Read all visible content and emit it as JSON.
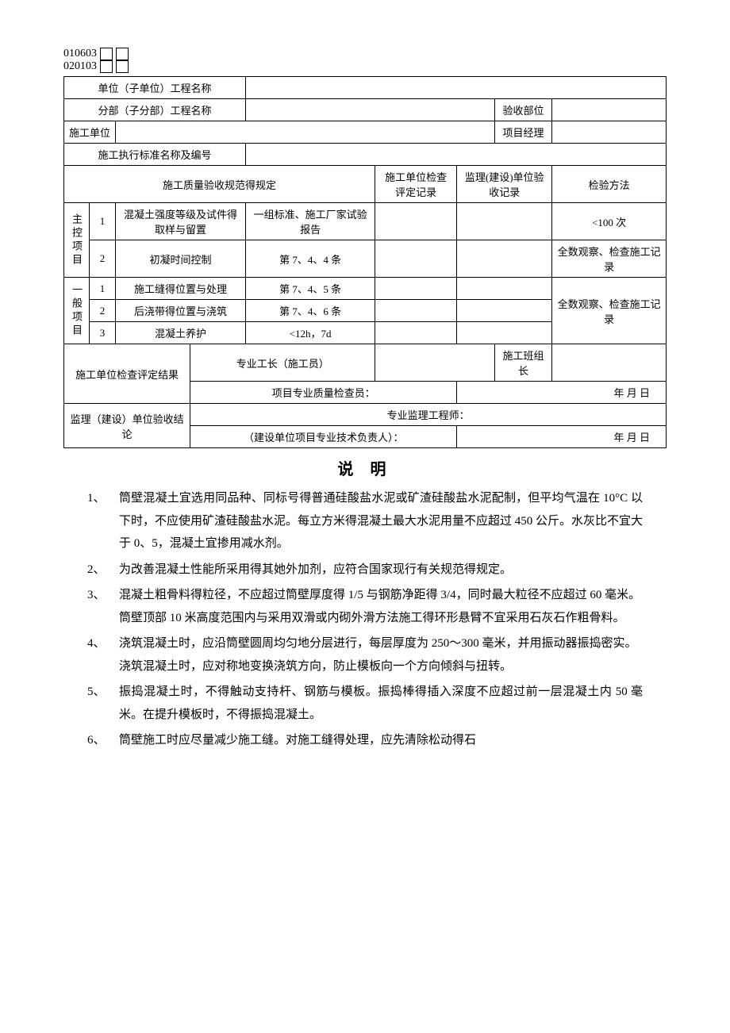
{
  "codes": [
    "010603",
    "020103"
  ],
  "header": {
    "unit_label": "单位（子单位）工程名称",
    "section_label": "分部（子分部）工程名称",
    "acceptance_part_label": "验收部位",
    "construction_unit_label": "施工单位",
    "project_manager_label": "项目经理",
    "standard_label": "施工执行标准名称及编号"
  },
  "cols": {
    "spec": "施工质量验收规范得规定",
    "check_record": "施工单位检查评定记录",
    "supervision_record": "监理(建设)单位验收记录",
    "inspection_method": "检验方法"
  },
  "sections": {
    "main_control": "主控项目",
    "general": "一般项目"
  },
  "rows": {
    "mc1": {
      "idx": "1",
      "name": "混凝土强度等级及试件得取样与留置",
      "spec": "一组标准、施工厂家试验报告",
      "method": "<100 次"
    },
    "mc2": {
      "idx": "2",
      "name": "初凝时间控制",
      "spec": "第 7、4、4 条",
      "method": "全数观察、检查施工记录"
    },
    "g1": {
      "idx": "1",
      "name": "施工缝得位置与处理",
      "spec": "第 7、4、5 条"
    },
    "g2": {
      "idx": "2",
      "name": "后浇带得位置与浇筑",
      "spec": "第 7、4、6 条"
    },
    "g3": {
      "idx": "3",
      "name": "混凝土养护",
      "spec": "<12h，7d"
    },
    "general_method": "全数观察、检查施工记录"
  },
  "footer": {
    "construction_result_label": "施工单位检查评定结果",
    "foreman_label": "专业工长（施工员）",
    "team_leader_label": "施工班组长",
    "quality_inspector_label": "项目专业质量检查员：",
    "supervision_conclusion_label": "监理（建设）单位验收结论",
    "supervision_engineer_label": "专业监理工程师：",
    "tech_lead_label": "（建设单位项目专业技术负责人）：",
    "date1": "年       月       日",
    "date2": "年       月       日"
  },
  "notes_title": "说  明",
  "notes": [
    {
      "num": "1、",
      "text": "筒壁混凝土宜选用同品种、同标号得普通硅酸盐水泥或矿渣硅酸盐水泥配制，但平均气温在 10°C 以下时，不应使用矿渣硅酸盐水泥。每立方米得混凝土最大水泥用量不应超过 450 公斤。水灰比不宜大于 0、5，混凝土宜掺用减水剂。"
    },
    {
      "num": "2、",
      "text": "为改善混凝土性能所采用得其她外加剂，应符合国家现行有关规范得规定。"
    },
    {
      "num": "3、",
      "text": "混凝土粗骨料得粒径，不应超过筒壁厚度得 1/5 与钢筋净距得 3/4，同时最大粒径不应超过 60 毫米。\n筒壁顶部 10 米高度范围内与采用双滑或内砌外滑方法施工得环形悬臂不宜采用石灰石作粗骨料。"
    },
    {
      "num": "4、",
      "text": "浇筑混凝土时，应沿筒壁圆周均匀地分层进行，每层厚度为 250～300 毫米，并用振动器振捣密实。\n浇筑混凝土时，应对称地变换浇筑方向，防止模板向一个方向倾斜与扭转。"
    },
    {
      "num": "5、",
      "text": "振捣混凝土时，不得触动支持杆、钢筋与模板。振捣棒得插入深度不应超过前一层混凝土内 50 毫米。在提升模板时，不得振捣混凝土。"
    },
    {
      "num": "6、",
      "text": "筒壁施工时应尽量减少施工缝。对施工缝得处理，应先清除松动得石"
    }
  ]
}
